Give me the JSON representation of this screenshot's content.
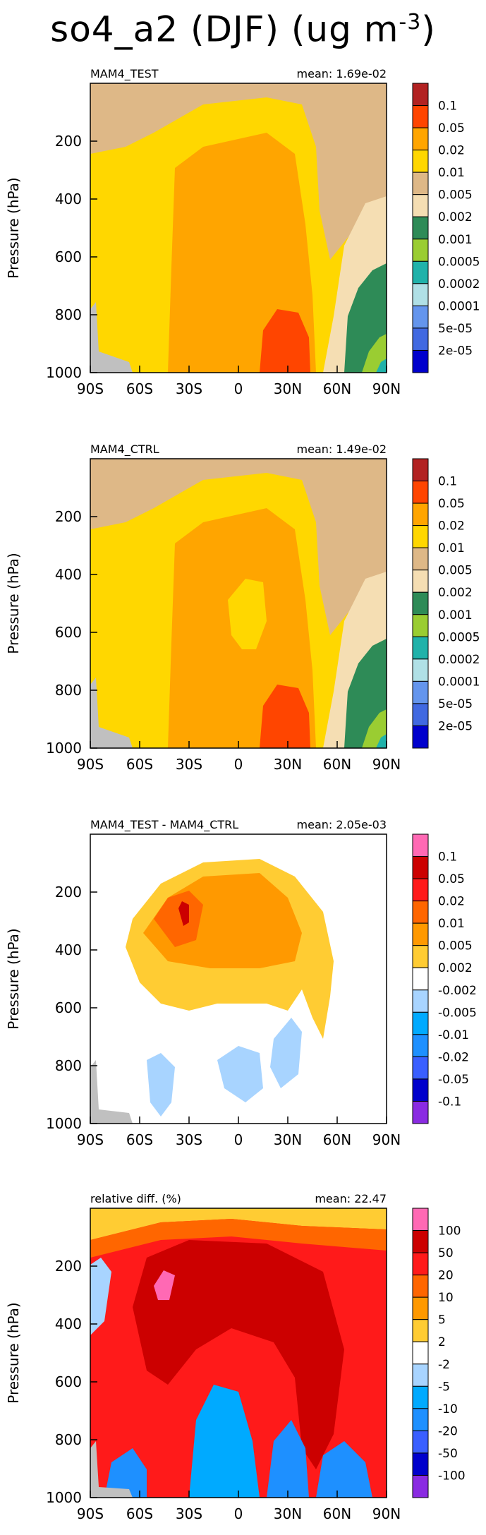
{
  "figure": {
    "title": "so4_a2 (DJF) (ug m",
    "title_exp": "-3",
    "title_close": ")"
  },
  "chart_data": [
    {
      "type": "heatmap",
      "left_label": "MAM4_TEST",
      "right_label": "mean: 1.69e-02",
      "ylabel": "Pressure (hPa)",
      "xlabel": "",
      "x_ticks": [
        "90S",
        "60S",
        "30S",
        "0",
        "30N",
        "60N",
        "90N"
      ],
      "y_ticks": [
        "200",
        "400",
        "600",
        "800",
        "1000"
      ],
      "ylim": [
        1000,
        0
      ],
      "legend_labels": [
        "0.1",
        "0.05",
        "0.02",
        "0.01",
        "0.005",
        "0.002",
        "0.001",
        "0.0005",
        "0.0002",
        "0.0001",
        "5e-05",
        "2e-05"
      ],
      "colors": [
        "#b22222",
        "#ff4500",
        "#ffa500",
        "#ffd700",
        "#deb887",
        "#f5deb3",
        "#2e8b57",
        "#9acd32",
        "#20b2aa",
        "#b0e0e6",
        "#6495ed",
        "#4169e1",
        "#0000cd"
      ]
    },
    {
      "type": "heatmap",
      "left_label": "MAM4_CTRL",
      "right_label": "mean: 1.49e-02",
      "ylabel": "Pressure (hPa)",
      "xlabel": "",
      "x_ticks": [
        "90S",
        "60S",
        "30S",
        "0",
        "30N",
        "60N",
        "90N"
      ],
      "y_ticks": [
        "200",
        "400",
        "600",
        "800",
        "1000"
      ],
      "ylim": [
        1000,
        0
      ],
      "legend_labels": [
        "0.1",
        "0.05",
        "0.02",
        "0.01",
        "0.005",
        "0.002",
        "0.001",
        "0.0005",
        "0.0002",
        "0.0001",
        "5e-05",
        "2e-05"
      ],
      "colors": [
        "#b22222",
        "#ff4500",
        "#ffa500",
        "#ffd700",
        "#deb887",
        "#f5deb3",
        "#2e8b57",
        "#9acd32",
        "#20b2aa",
        "#b0e0e6",
        "#6495ed",
        "#4169e1",
        "#0000cd"
      ]
    },
    {
      "type": "heatmap",
      "left_label": "MAM4_TEST - MAM4_CTRL",
      "right_label": "mean: 2.05e-03",
      "ylabel": "Pressure (hPa)",
      "xlabel": "",
      "x_ticks": [
        "90S",
        "60S",
        "30S",
        "0",
        "30N",
        "60N",
        "90N"
      ],
      "y_ticks": [
        "200",
        "400",
        "600",
        "800",
        "1000"
      ],
      "ylim": [
        1000,
        0
      ],
      "legend_labels": [
        "0.1",
        "0.05",
        "0.02",
        "0.01",
        "0.005",
        "0.002",
        "-0.002",
        "-0.005",
        "-0.01",
        "-0.02",
        "-0.05",
        "-0.1"
      ],
      "colors": [
        "#ff69b4",
        "#cc0000",
        "#ff1a1a",
        "#ff6600",
        "#ff9900",
        "#ffcc33",
        "#ffffff",
        "#a8d4ff",
        "#00aaff",
        "#1e90ff",
        "#3a5fff",
        "#0000cc",
        "#8a2be2"
      ]
    },
    {
      "type": "heatmap",
      "left_label": "relative diff. (%)",
      "right_label": "mean: 22.47",
      "ylabel": "Pressure (hPa)",
      "xlabel": "",
      "x_ticks": [
        "90S",
        "60S",
        "30S",
        "0",
        "30N",
        "60N",
        "90N"
      ],
      "y_ticks": [
        "200",
        "400",
        "600",
        "800",
        "1000"
      ],
      "ylim": [
        1000,
        0
      ],
      "legend_labels": [
        "100",
        "50",
        "20",
        "10",
        "5",
        "2",
        "-2",
        "-5",
        "-10",
        "-20",
        "-50",
        "-100"
      ],
      "colors": [
        "#ff69b4",
        "#cc0000",
        "#ff1a1a",
        "#ff6600",
        "#ff9900",
        "#ffcc33",
        "#ffffff",
        "#a8d4ff",
        "#00aaff",
        "#1e90ff",
        "#3a5fff",
        "#0000cc",
        "#8a2be2"
      ]
    }
  ]
}
